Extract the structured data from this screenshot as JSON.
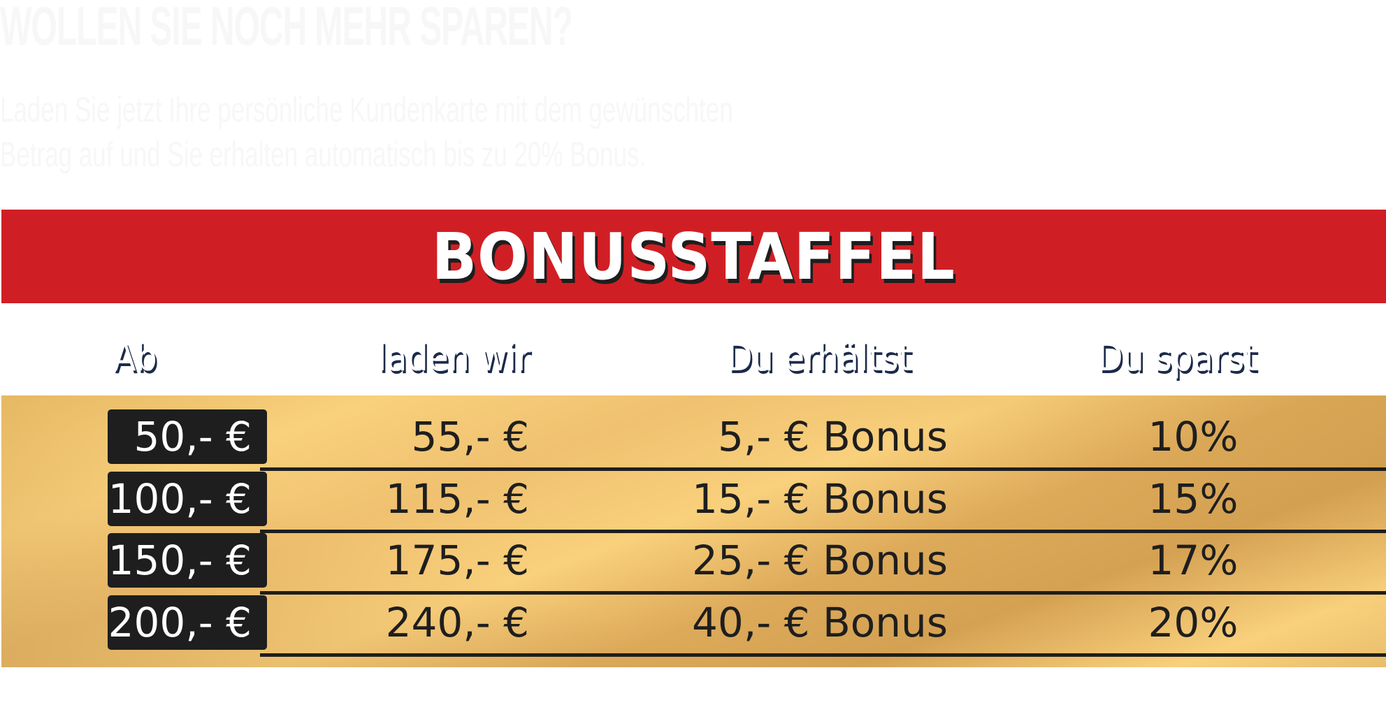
{
  "intro": {
    "title": "WOLLEN SIE NOCH MEHR SPAREN?",
    "line1": "Laden Sie jetzt Ihre persönliche Kundenkarte mit dem gewünschten",
    "line2": "Betrag auf und Sie erhalten automatisch bis zu 20% Bonus."
  },
  "banner": {
    "title": "BONUSSTAFFEL",
    "color": "#d01f24"
  },
  "table": {
    "headers": [
      "Ab",
      "laden wir",
      "Du erhältst",
      "Du sparst"
    ],
    "rows": [
      {
        "ab": "50,- €",
        "laden": "55,- €",
        "bonus": "5,- € Bonus",
        "spar": "10%"
      },
      {
        "ab": "100,- €",
        "laden": "115,- €",
        "bonus": "15,- € Bonus",
        "spar": "15%"
      },
      {
        "ab": "150,- €",
        "laden": "175,- €",
        "bonus": "25,- € Bonus",
        "spar": "17%"
      },
      {
        "ab": "200,- €",
        "laden": "240,- €",
        "bonus": "40,- € Bonus",
        "spar": "20%"
      }
    ]
  }
}
